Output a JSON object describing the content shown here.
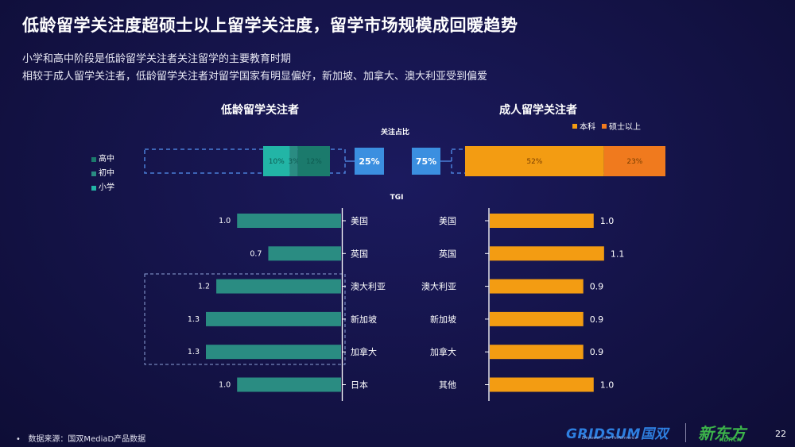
{
  "header": {
    "title": "低龄留学关注度超硕士以上留学关注度，留学市场规模成回暖趋势",
    "subtitle_1": "小学和高中阶段是低龄留学关注者关注留学的主要教育时期",
    "subtitle_2": "相较于成人留学关注者，低龄留学关注者对留学国家有明显偏好，新加坡、加拿大、澳大利亚受到偏爱"
  },
  "panels": {
    "left_title": "低龄留学关注者",
    "right_title": "成人留学关注者",
    "share_title": "关注占比",
    "tgi_title": "TGI"
  },
  "legend_left": [
    {
      "label": "高中",
      "color": "#1b7a6c"
    },
    {
      "label": "初中",
      "color": "#2a8c82"
    },
    {
      "label": "小学",
      "color": "#22b5a6"
    }
  ],
  "legend_right": [
    {
      "label": "本科",
      "color": "#f39c12"
    },
    {
      "label": "硕士以上",
      "color": "#f07a1e"
    }
  ],
  "chart_data": [
    {
      "type": "bar",
      "title": "关注占比",
      "orientation": "horizontal-stacked",
      "series": [
        {
          "group": "低龄留学关注者",
          "name": "小学",
          "value": 10,
          "label": "10%",
          "color": "#22b5a6"
        },
        {
          "group": "低龄留学关注者",
          "name": "初中",
          "value": 3,
          "label": "3%",
          "color": "#2a8c82"
        },
        {
          "group": "低龄留学关注者",
          "name": "高中",
          "value": 12,
          "label": "12%",
          "color": "#1b7a6c"
        },
        {
          "group": "成人留学关注者",
          "name": "本科",
          "value": 52,
          "label": "52%",
          "color": "#f39c12"
        },
        {
          "group": "成人留学关注者",
          "name": "硕士以上",
          "value": 23,
          "label": "23%",
          "color": "#f07a1e"
        }
      ],
      "totals": [
        {
          "group": "低龄留学关注者",
          "label": "25%"
        },
        {
          "group": "成人留学关注者",
          "label": "75%"
        }
      ]
    },
    {
      "type": "bar",
      "title": "TGI",
      "group": "低龄留学关注者",
      "orientation": "horizontal-left",
      "categories": [
        "美国",
        "英国",
        "澳大利亚",
        "新加坡",
        "加拿大",
        "日本"
      ],
      "values": [
        1.0,
        0.7,
        1.2,
        1.3,
        1.3,
        1.0
      ],
      "labels": [
        "1.0",
        "0.7",
        "1.2",
        "1.3",
        "1.3",
        "1.0"
      ],
      "xlim": [
        0,
        1.3
      ],
      "color": "#2a8c82"
    },
    {
      "type": "bar",
      "title": "TGI",
      "group": "成人留学关注者",
      "orientation": "horizontal-right",
      "categories": [
        "美国",
        "英国",
        "澳大利亚",
        "新加坡",
        "加拿大",
        "其他"
      ],
      "values": [
        1.0,
        1.1,
        0.9,
        0.9,
        0.9,
        1.0
      ],
      "labels": [
        "1.0",
        "1.1",
        "0.9",
        "0.9",
        "0.9",
        "1.0"
      ],
      "xlim": [
        0,
        1.3
      ],
      "color": "#f39c12"
    }
  ],
  "footer": {
    "source": "数据来源：国双MediaD产品数据",
    "logo_gridsum": "GRIDSUM国双",
    "logo_gridsum_tag": "Empower your Performance",
    "logo_xdf": "新东方",
    "logo_xdf_tag": "XDF.CN",
    "page_number": "22"
  }
}
